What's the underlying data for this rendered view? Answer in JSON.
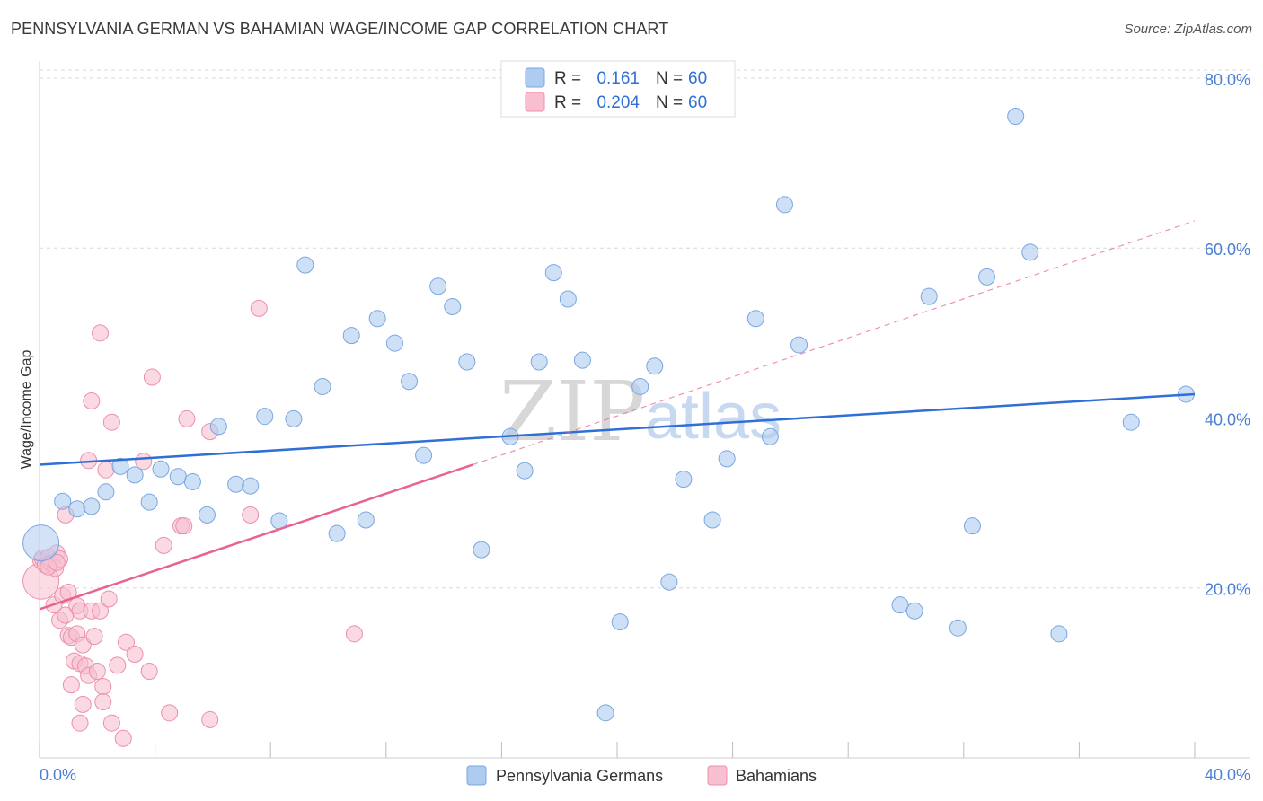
{
  "title": "PENNSYLVANIA GERMAN VS BAHAMIAN WAGE/INCOME GAP CORRELATION CHART",
  "source": "Source: ZipAtlas.com",
  "watermark": {
    "part1": "ZIP",
    "part2": "atlas"
  },
  "legend": {
    "rows": [
      {
        "r_label": "R =",
        "r_value": "0.161",
        "n_label": "N =",
        "n_value": "60"
      },
      {
        "r_label": "R =",
        "r_value": "0.204",
        "n_label": "N =",
        "n_value": "60"
      }
    ]
  },
  "bottom_legend": [
    "Pennsylvania Germans",
    "Bahamians"
  ],
  "colors": {
    "blue_fill": "#aecbf0",
    "blue_stroke": "#7aa6e0",
    "blue_line": "#2f6fd6",
    "pink_fill": "#f7bfd0",
    "pink_stroke": "#ec8fac",
    "pink_line": "#e8648e",
    "grid": "#d9d9d9",
    "tick_text": "#4a7fd4"
  },
  "chart_data": {
    "type": "scatter",
    "title": "PENNSYLVANIA GERMAN VS BAHAMIAN WAGE/INCOME GAP CORRELATION CHART",
    "xlabel": "",
    "ylabel": "Wage/Income Gap",
    "xlim": [
      0,
      40
    ],
    "ylim": [
      0,
      82
    ],
    "x_tick_labels": [
      "0.0%",
      "40.0%"
    ],
    "y_ticks": [
      20,
      40,
      60,
      80
    ],
    "y_tick_labels": [
      "20.0%",
      "40.0%",
      "60.0%",
      "80.0%"
    ],
    "series": [
      {
        "name": "Pennsylvania Germans",
        "r": 0.161,
        "n": 60,
        "trend": {
          "x": [
            0,
            40
          ],
          "y": [
            34.5,
            42.8
          ]
        },
        "points": [
          {
            "x": 0.05,
            "y": 25.3,
            "big": true
          },
          {
            "x": 0.8,
            "y": 30.2
          },
          {
            "x": 1.3,
            "y": 29.3
          },
          {
            "x": 1.8,
            "y": 29.6
          },
          {
            "x": 2.3,
            "y": 31.3
          },
          {
            "x": 2.8,
            "y": 34.3
          },
          {
            "x": 3.3,
            "y": 33.3
          },
          {
            "x": 3.8,
            "y": 30.1
          },
          {
            "x": 4.2,
            "y": 34.0
          },
          {
            "x": 4.8,
            "y": 33.1
          },
          {
            "x": 5.3,
            "y": 32.5
          },
          {
            "x": 5.8,
            "y": 28.6
          },
          {
            "x": 6.2,
            "y": 39.0
          },
          {
            "x": 6.8,
            "y": 32.2
          },
          {
            "x": 7.3,
            "y": 32.0
          },
          {
            "x": 7.8,
            "y": 40.2
          },
          {
            "x": 8.3,
            "y": 27.9
          },
          {
            "x": 8.8,
            "y": 39.9
          },
          {
            "x": 9.2,
            "y": 58.0
          },
          {
            "x": 9.8,
            "y": 43.7
          },
          {
            "x": 10.3,
            "y": 26.4
          },
          {
            "x": 10.8,
            "y": 49.7
          },
          {
            "x": 11.3,
            "y": 28.0
          },
          {
            "x": 11.7,
            "y": 51.7
          },
          {
            "x": 12.3,
            "y": 48.8
          },
          {
            "x": 12.8,
            "y": 44.3
          },
          {
            "x": 13.3,
            "y": 35.6
          },
          {
            "x": 13.8,
            "y": 55.5
          },
          {
            "x": 14.3,
            "y": 53.1
          },
          {
            "x": 14.8,
            "y": 46.6
          },
          {
            "x": 15.3,
            "y": 24.5
          },
          {
            "x": 16.3,
            "y": 37.8
          },
          {
            "x": 16.8,
            "y": 33.8
          },
          {
            "x": 17.3,
            "y": 46.6
          },
          {
            "x": 17.8,
            "y": 57.1
          },
          {
            "x": 18.3,
            "y": 54.0
          },
          {
            "x": 18.8,
            "y": 46.8
          },
          {
            "x": 19.6,
            "y": 5.3
          },
          {
            "x": 20.1,
            "y": 16.0
          },
          {
            "x": 20.8,
            "y": 43.7
          },
          {
            "x": 21.3,
            "y": 46.1
          },
          {
            "x": 21.8,
            "y": 20.7
          },
          {
            "x": 22.3,
            "y": 32.8
          },
          {
            "x": 23.3,
            "y": 28.0
          },
          {
            "x": 23.8,
            "y": 35.2
          },
          {
            "x": 24.8,
            "y": 51.7
          },
          {
            "x": 25.3,
            "y": 37.8
          },
          {
            "x": 25.8,
            "y": 65.1
          },
          {
            "x": 26.3,
            "y": 48.6
          },
          {
            "x": 29.8,
            "y": 18.0
          },
          {
            "x": 30.3,
            "y": 17.3
          },
          {
            "x": 30.8,
            "y": 54.3
          },
          {
            "x": 31.8,
            "y": 15.3
          },
          {
            "x": 32.3,
            "y": 27.3
          },
          {
            "x": 32.8,
            "y": 56.6
          },
          {
            "x": 33.8,
            "y": 75.5
          },
          {
            "x": 34.3,
            "y": 59.5
          },
          {
            "x": 35.3,
            "y": 14.6
          },
          {
            "x": 37.8,
            "y": 39.5
          },
          {
            "x": 39.7,
            "y": 42.8
          }
        ]
      },
      {
        "name": "Bahamians",
        "r": 0.204,
        "n": 60,
        "trend": {
          "x": [
            0,
            15
          ],
          "y": [
            17.5,
            34.5
          ]
        },
        "trend_extension": {
          "x": [
            15,
            40
          ],
          "y": [
            34.5,
            63.2
          ]
        },
        "points": [
          {
            "x": 0.05,
            "y": 20.8,
            "big": true
          },
          {
            "x": 0.05,
            "y": 23.2
          },
          {
            "x": 0.1,
            "y": 23.5
          },
          {
            "x": 0.2,
            "y": 22.7
          },
          {
            "x": 0.3,
            "y": 23.6
          },
          {
            "x": 0.4,
            "y": 22.9
          },
          {
            "x": 0.5,
            "y": 18.0
          },
          {
            "x": 0.55,
            "y": 22.3
          },
          {
            "x": 0.6,
            "y": 24.1
          },
          {
            "x": 0.7,
            "y": 23.4
          },
          {
            "x": 0.7,
            "y": 16.2
          },
          {
            "x": 0.8,
            "y": 19.1
          },
          {
            "x": 0.9,
            "y": 16.8
          },
          {
            "x": 0.9,
            "y": 28.6
          },
          {
            "x": 1.0,
            "y": 14.4
          },
          {
            "x": 1.1,
            "y": 14.2
          },
          {
            "x": 1.1,
            "y": 8.6
          },
          {
            "x": 1.2,
            "y": 11.4
          },
          {
            "x": 1.3,
            "y": 17.9
          },
          {
            "x": 1.3,
            "y": 14.6
          },
          {
            "x": 1.4,
            "y": 17.3
          },
          {
            "x": 1.4,
            "y": 11.1
          },
          {
            "x": 1.4,
            "y": 4.1
          },
          {
            "x": 1.5,
            "y": 6.3
          },
          {
            "x": 1.5,
            "y": 13.3
          },
          {
            "x": 1.6,
            "y": 10.8
          },
          {
            "x": 1.7,
            "y": 35.0
          },
          {
            "x": 1.7,
            "y": 9.7
          },
          {
            "x": 1.8,
            "y": 17.3
          },
          {
            "x": 1.8,
            "y": 42.0
          },
          {
            "x": 1.9,
            "y": 14.3
          },
          {
            "x": 2.0,
            "y": 10.2
          },
          {
            "x": 2.1,
            "y": 17.3
          },
          {
            "x": 2.1,
            "y": 50.0
          },
          {
            "x": 2.2,
            "y": 8.4
          },
          {
            "x": 2.2,
            "y": 6.6
          },
          {
            "x": 2.3,
            "y": 33.9
          },
          {
            "x": 2.4,
            "y": 18.7
          },
          {
            "x": 2.5,
            "y": 4.1
          },
          {
            "x": 2.5,
            "y": 39.5
          },
          {
            "x": 2.7,
            "y": 10.9
          },
          {
            "x": 2.9,
            "y": 2.3
          },
          {
            "x": 3.0,
            "y": 13.6
          },
          {
            "x": 3.3,
            "y": 12.2
          },
          {
            "x": 3.6,
            "y": 34.9
          },
          {
            "x": 3.8,
            "y": 10.2
          },
          {
            "x": 3.9,
            "y": 44.8
          },
          {
            "x": 4.3,
            "y": 25.0
          },
          {
            "x": 4.5,
            "y": 5.3
          },
          {
            "x": 4.9,
            "y": 27.3
          },
          {
            "x": 5.0,
            "y": 27.3
          },
          {
            "x": 5.1,
            "y": 39.9
          },
          {
            "x": 5.9,
            "y": 4.5
          },
          {
            "x": 5.9,
            "y": 38.4
          },
          {
            "x": 7.3,
            "y": 28.6
          },
          {
            "x": 7.6,
            "y": 52.9
          },
          {
            "x": 10.9,
            "y": 14.6
          },
          {
            "x": 0.3,
            "y": 22.5
          },
          {
            "x": 0.6,
            "y": 23.0
          },
          {
            "x": 1.0,
            "y": 19.5
          }
        ]
      }
    ]
  }
}
